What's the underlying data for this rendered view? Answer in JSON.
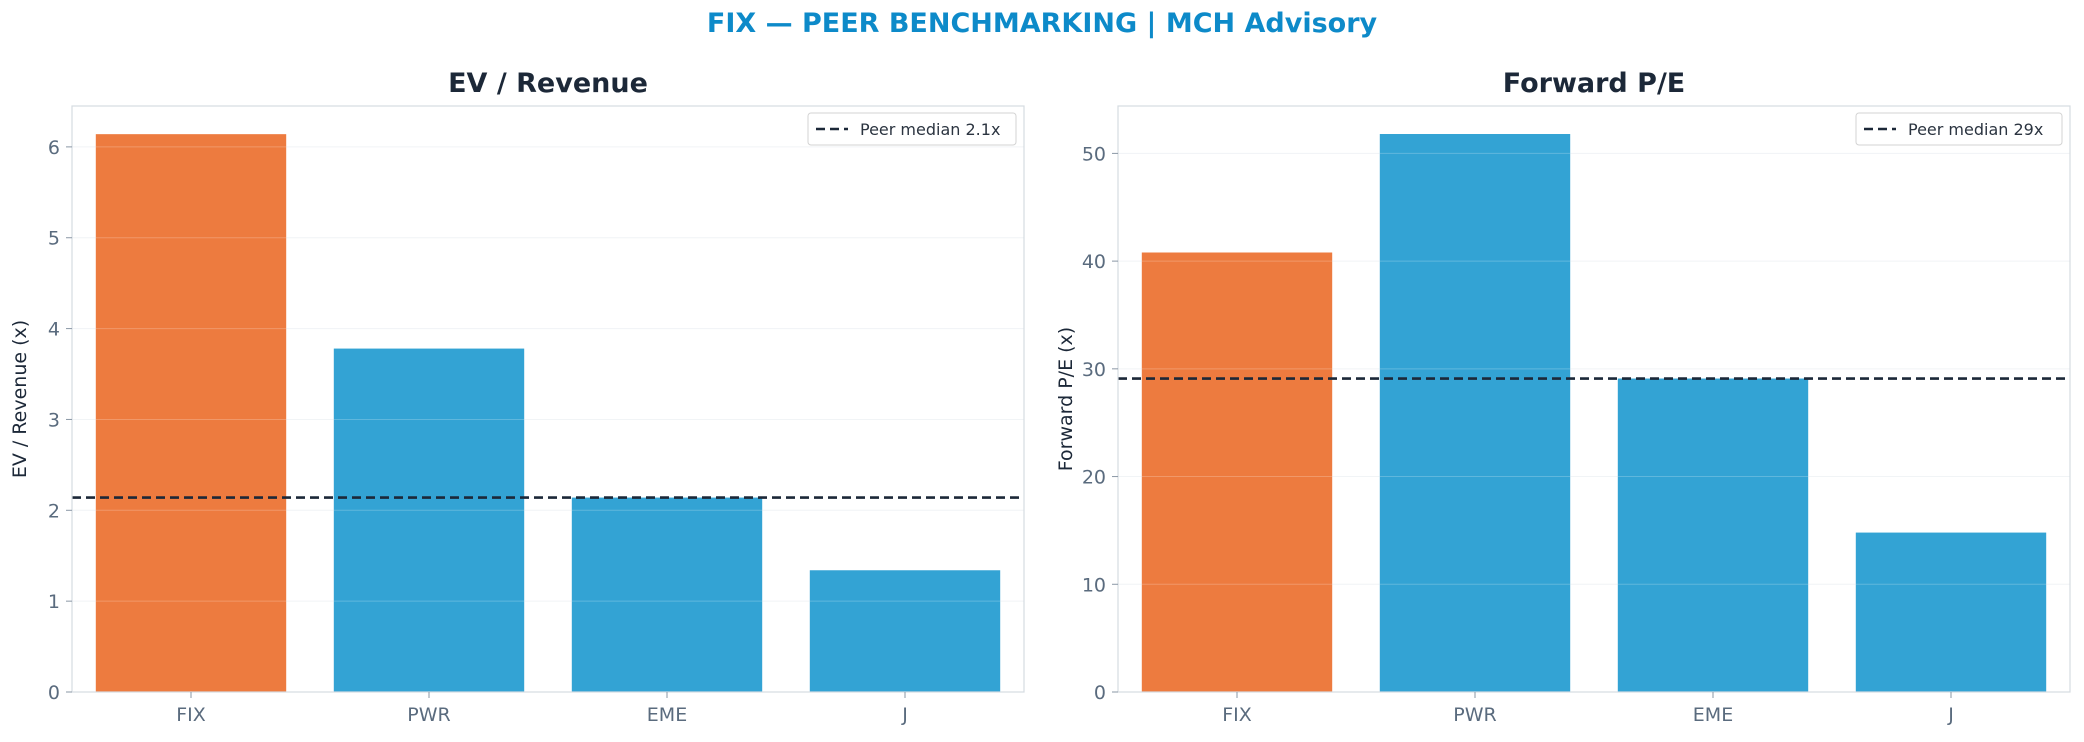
{
  "figure": {
    "suptitle": "FIX — PEER BENCHMARKING | MCH Advisory"
  },
  "chart_data": [
    {
      "type": "bar",
      "title": "EV / Revenue",
      "xlabel": "",
      "ylabel": "EV / Revenue (x)",
      "categories": [
        "FIX",
        "PWR",
        "EME",
        "J"
      ],
      "values": [
        6.14,
        3.78,
        2.14,
        1.34
      ],
      "bar_colors": [
        "#ed7b3f",
        "#33a3d4",
        "#33a3d4",
        "#33a3d4"
      ],
      "ylim": [
        0,
        6.45
      ],
      "yticks": [
        0,
        1,
        2,
        3,
        4,
        5,
        6
      ],
      "grid": true,
      "reference_line": {
        "value": 2.14,
        "label": "Peer median 2.1x",
        "style": "dashed",
        "color": "#1c2838"
      },
      "legend": {
        "placement": "top-right",
        "entries": [
          "Peer median 2.1x"
        ]
      }
    },
    {
      "type": "bar",
      "title": "Forward P/E",
      "xlabel": "",
      "ylabel": "Forward P/E (x)",
      "categories": [
        "FIX",
        "PWR",
        "EME",
        "J"
      ],
      "values": [
        40.8,
        51.8,
        29.1,
        14.8
      ],
      "bar_colors": [
        "#ed7b3f",
        "#33a3d4",
        "#33a3d4",
        "#33a3d4"
      ],
      "ylim": [
        0,
        54.4
      ],
      "yticks": [
        0,
        10,
        20,
        30,
        40,
        50
      ],
      "grid": true,
      "reference_line": {
        "value": 29.1,
        "label": "Peer median 29x",
        "style": "dashed",
        "color": "#1c2838"
      },
      "legend": {
        "placement": "top-right",
        "entries": [
          "Peer median 29x"
        ]
      }
    }
  ]
}
